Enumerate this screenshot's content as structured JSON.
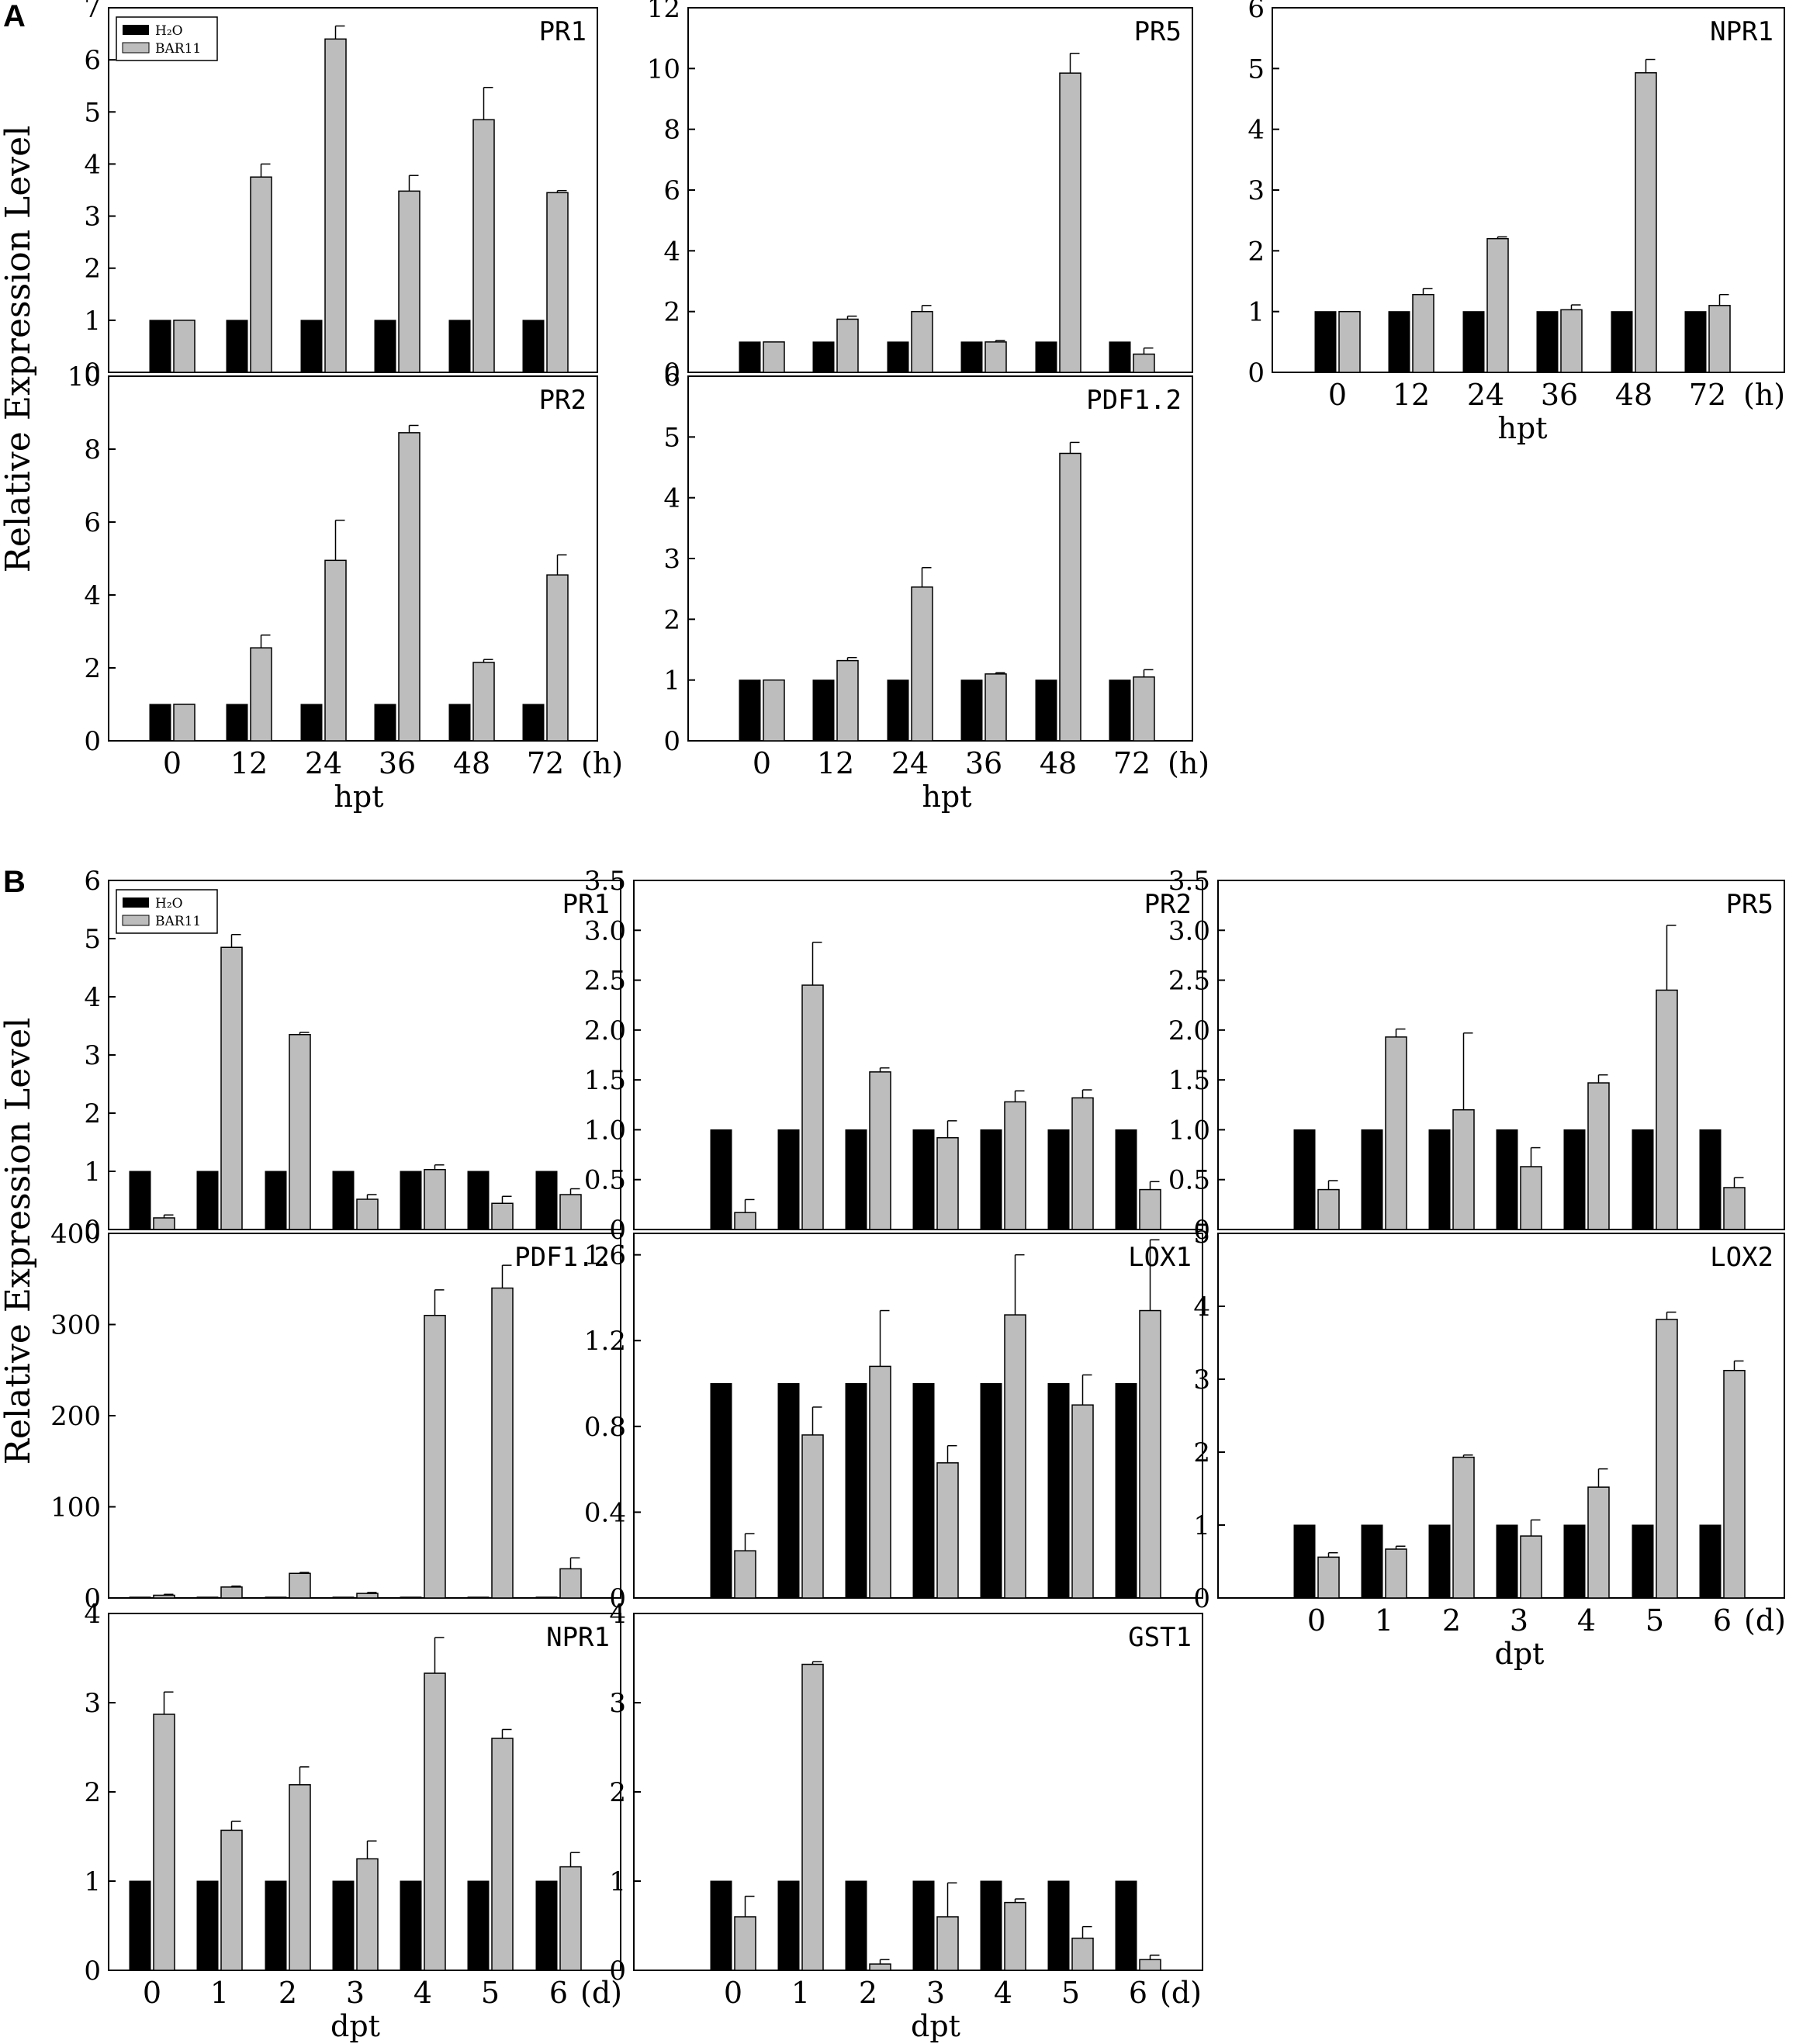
{
  "figure": {
    "ylabel": "Relative Expression Level",
    "panel_A_label": "A",
    "panel_B_label": "B"
  },
  "colors": {
    "H2O": "#000000",
    "BAR11": "#bdbdbd",
    "axis": "#000000"
  },
  "chart_data": [
    {
      "id": "A-PR1",
      "type": "bar",
      "title": "PR1",
      "categories": [
        "0",
        "12",
        "24",
        "36",
        "48",
        "72"
      ],
      "ylim": [
        0,
        7
      ],
      "yticks": [
        "0",
        "1",
        "2",
        "3",
        "4",
        "5",
        "6",
        "7"
      ],
      "legend": {
        "position": "top-left",
        "entries": [
          "H₂O",
          "BAR11"
        ]
      },
      "series": [
        {
          "name": "H₂O",
          "values": [
            1,
            1,
            1,
            1,
            1,
            1
          ],
          "errors": [
            0,
            0,
            0,
            0,
            0,
            0
          ]
        },
        {
          "name": "BAR11",
          "values": [
            1,
            3.75,
            6.4,
            3.48,
            4.85,
            3.45
          ],
          "errors": [
            0,
            0.25,
            0.25,
            0.3,
            0.62,
            0.04
          ]
        }
      ]
    },
    {
      "id": "A-PR5",
      "type": "bar",
      "title": "PR5",
      "categories": [
        "0",
        "12",
        "24",
        "36",
        "48",
        "72"
      ],
      "ylim": [
        0,
        12
      ],
      "yticks": [
        "0",
        "2",
        "4",
        "6",
        "8",
        "10",
        "12"
      ],
      "series": [
        {
          "name": "H₂O",
          "values": [
            1,
            1,
            1,
            1,
            1,
            1
          ],
          "errors": [
            0,
            0,
            0,
            0,
            0,
            0
          ]
        },
        {
          "name": "BAR11",
          "values": [
            1,
            1.75,
            2.0,
            1.0,
            9.85,
            0.6
          ],
          "errors": [
            0,
            0.1,
            0.2,
            0.05,
            0.65,
            0.2
          ]
        }
      ]
    },
    {
      "id": "A-NPR1",
      "type": "bar",
      "title": "NPR1",
      "categories": [
        "0",
        "12",
        "24",
        "36",
        "48",
        "72"
      ],
      "ylim": [
        0,
        6
      ],
      "yticks": [
        "0",
        "1",
        "2",
        "3",
        "4",
        "5",
        "6"
      ],
      "xlabel": "hpt",
      "xunit": "(h)",
      "series": [
        {
          "name": "H₂O",
          "values": [
            1,
            1,
            1,
            1,
            1,
            1
          ],
          "errors": [
            0,
            0,
            0,
            0,
            0,
            0
          ]
        },
        {
          "name": "BAR11",
          "values": [
            1,
            1.28,
            2.2,
            1.03,
            4.93,
            1.1
          ],
          "errors": [
            0,
            0.1,
            0.03,
            0.08,
            0.22,
            0.18
          ]
        }
      ]
    },
    {
      "id": "A-PR2",
      "type": "bar",
      "title": "PR2",
      "categories": [
        "0",
        "12",
        "24",
        "36",
        "48",
        "72"
      ],
      "ylim": [
        0,
        10
      ],
      "yticks": [
        "0",
        "2",
        "4",
        "6",
        "8",
        "10"
      ],
      "xlabel": "hpt",
      "xunit": "(h)",
      "series": [
        {
          "name": "H₂O",
          "values": [
            1,
            1,
            1,
            1,
            1,
            1
          ],
          "errors": [
            0,
            0,
            0,
            0,
            0,
            0
          ]
        },
        {
          "name": "BAR11",
          "values": [
            1,
            2.55,
            4.95,
            8.45,
            2.15,
            4.55
          ],
          "errors": [
            0,
            0.35,
            1.1,
            0.2,
            0.08,
            0.55
          ]
        }
      ]
    },
    {
      "id": "A-PDF12",
      "type": "bar",
      "title": "PDF1.2",
      "categories": [
        "0",
        "12",
        "24",
        "36",
        "48",
        "72"
      ],
      "ylim": [
        0,
        6
      ],
      "yticks": [
        "0",
        "1",
        "2",
        "3",
        "4",
        "5",
        "6"
      ],
      "xlabel": "hpt",
      "xunit": "(h)",
      "series": [
        {
          "name": "H₂O",
          "values": [
            1,
            1,
            1,
            1,
            1,
            1
          ],
          "errors": [
            0,
            0,
            0,
            0,
            0,
            0
          ]
        },
        {
          "name": "BAR11",
          "values": [
            1,
            1.32,
            2.53,
            1.1,
            4.73,
            1.05
          ],
          "errors": [
            0,
            0.05,
            0.32,
            0.02,
            0.18,
            0.12
          ]
        }
      ]
    },
    {
      "id": "B-PR1",
      "type": "bar",
      "title": "PR1",
      "categories": [
        "0",
        "1",
        "2",
        "3",
        "4",
        "5",
        "6"
      ],
      "ylim": [
        0,
        6
      ],
      "yticks": [
        "0",
        "1",
        "2",
        "3",
        "4",
        "5",
        "6"
      ],
      "legend": {
        "position": "top-left",
        "entries": [
          "H₂O",
          "BAR11"
        ]
      },
      "series": [
        {
          "name": "H₂O",
          "values": [
            1,
            1,
            1,
            1,
            1,
            1,
            1
          ],
          "errors": [
            0,
            0,
            0,
            0,
            0,
            0,
            0
          ]
        },
        {
          "name": "BAR11",
          "values": [
            0.2,
            4.85,
            3.35,
            0.52,
            1.03,
            0.45,
            0.6
          ],
          "errors": [
            0.05,
            0.22,
            0.04,
            0.08,
            0.08,
            0.12,
            0.1
          ]
        }
      ]
    },
    {
      "id": "B-PR2",
      "type": "bar",
      "title": "PR2",
      "categories": [
        "0",
        "1",
        "2",
        "3",
        "4",
        "5",
        "6"
      ],
      "ylim": [
        0,
        3.5
      ],
      "yticks": [
        "0",
        "0.5",
        "1.0",
        "1.5",
        "2.0",
        "2.5",
        "3.0",
        "3.5"
      ],
      "series": [
        {
          "name": "H₂O",
          "values": [
            1,
            1,
            1,
            1,
            1,
            1,
            1
          ],
          "errors": [
            0,
            0,
            0,
            0,
            0,
            0,
            0
          ]
        },
        {
          "name": "BAR11",
          "values": [
            0.17,
            2.45,
            1.58,
            0.92,
            1.28,
            1.32,
            0.4
          ],
          "errors": [
            0.13,
            0.43,
            0.04,
            0.17,
            0.11,
            0.08,
            0.08
          ]
        }
      ]
    },
    {
      "id": "B-PR5",
      "type": "bar",
      "title": "PR5",
      "categories": [
        "0",
        "1",
        "2",
        "3",
        "4",
        "5",
        "6"
      ],
      "ylim": [
        0,
        3.5
      ],
      "yticks": [
        "0",
        "0.5",
        "1.0",
        "1.5",
        "2.0",
        "2.5",
        "3.0",
        "3.5"
      ],
      "series": [
        {
          "name": "H₂O",
          "values": [
            1,
            1,
            1,
            1,
            1,
            1,
            1
          ],
          "errors": [
            0,
            0,
            0,
            0,
            0,
            0,
            0
          ]
        },
        {
          "name": "BAR11",
          "values": [
            0.4,
            1.93,
            1.2,
            0.63,
            1.47,
            2.4,
            0.42
          ],
          "errors": [
            0.09,
            0.08,
            0.77,
            0.19,
            0.08,
            0.65,
            0.1
          ]
        }
      ]
    },
    {
      "id": "B-PDF12",
      "type": "bar",
      "title": "PDF1.2",
      "categories": [
        "0",
        "1",
        "2",
        "3",
        "4",
        "5",
        "6"
      ],
      "ylim": [
        0,
        400
      ],
      "yticks": [
        "0",
        "100",
        "200",
        "300",
        "400"
      ],
      "series": [
        {
          "name": "H₂O",
          "values": [
            1,
            1,
            1,
            1,
            1,
            1,
            1
          ],
          "errors": [
            0,
            0,
            0,
            0,
            0,
            0,
            0
          ]
        },
        {
          "name": "BAR11",
          "values": [
            3,
            12,
            27,
            5,
            310,
            340,
            32
          ],
          "errors": [
            1,
            1,
            1,
            1,
            28,
            25,
            12
          ]
        }
      ]
    },
    {
      "id": "B-LOX1",
      "type": "bar",
      "title": "LOX1",
      "categories": [
        "0",
        "1",
        "2",
        "3",
        "4",
        "5",
        "6"
      ],
      "ylim": [
        0,
        1.7
      ],
      "yticks": [
        "0",
        "0.4",
        "0.8",
        "1.2",
        "1.6"
      ],
      "series": [
        {
          "name": "H₂O",
          "values": [
            1,
            1,
            1,
            1,
            1,
            1,
            1
          ],
          "errors": [
            0,
            0,
            0,
            0,
            0,
            0,
            0
          ]
        },
        {
          "name": "BAR11",
          "values": [
            0.22,
            0.76,
            1.08,
            0.63,
            1.32,
            0.9,
            1.34
          ],
          "errors": [
            0.08,
            0.13,
            0.26,
            0.08,
            0.28,
            0.14,
            0.33
          ]
        }
      ]
    },
    {
      "id": "B-LOX2",
      "type": "bar",
      "title": "LOX2",
      "categories": [
        "0",
        "1",
        "2",
        "3",
        "4",
        "5",
        "6"
      ],
      "ylim": [
        0,
        5
      ],
      "yticks": [
        "0",
        "1",
        "2",
        "3",
        "4",
        "5"
      ],
      "xlabel": "dpt",
      "xunit": "(d)",
      "series": [
        {
          "name": "H₂O",
          "values": [
            1,
            1,
            1,
            1,
            1,
            1,
            1
          ],
          "errors": [
            0,
            0,
            0,
            0,
            0,
            0,
            0
          ]
        },
        {
          "name": "BAR11",
          "values": [
            0.56,
            0.67,
            1.93,
            0.85,
            1.52,
            3.82,
            3.12
          ],
          "errors": [
            0.06,
            0.04,
            0.03,
            0.22,
            0.25,
            0.1,
            0.13
          ]
        }
      ]
    },
    {
      "id": "B-NPR1",
      "type": "bar",
      "title": "NPR1",
      "categories": [
        "0",
        "1",
        "2",
        "3",
        "4",
        "5",
        "6"
      ],
      "ylim": [
        0,
        4
      ],
      "yticks": [
        "0",
        "1",
        "2",
        "3",
        "4"
      ],
      "xlabel": "dpt",
      "xunit": "(d)",
      "series": [
        {
          "name": "H₂O",
          "values": [
            1,
            1,
            1,
            1,
            1,
            1,
            1
          ],
          "errors": [
            0,
            0,
            0,
            0,
            0,
            0,
            0
          ]
        },
        {
          "name": "BAR11",
          "values": [
            2.87,
            1.57,
            2.08,
            1.25,
            3.33,
            2.6,
            1.16
          ],
          "errors": [
            0.25,
            0.1,
            0.2,
            0.2,
            0.4,
            0.1,
            0.16
          ]
        }
      ]
    },
    {
      "id": "B-GST1",
      "type": "bar",
      "title": "GST1",
      "categories": [
        "0",
        "1",
        "2",
        "3",
        "4",
        "5",
        "6"
      ],
      "ylim": [
        0,
        4
      ],
      "yticks": [
        "0",
        "1",
        "2",
        "3",
        "4"
      ],
      "xlabel": "dpt",
      "xunit": "(d)",
      "series": [
        {
          "name": "H₂O",
          "values": [
            1,
            1,
            1,
            1,
            1,
            1,
            1
          ],
          "errors": [
            0,
            0,
            0,
            0,
            0,
            0,
            0
          ]
        },
        {
          "name": "BAR11",
          "values": [
            0.6,
            3.43,
            0.07,
            0.6,
            0.76,
            0.36,
            0.12
          ],
          "errors": [
            0.23,
            0.03,
            0.05,
            0.38,
            0.04,
            0.13,
            0.05
          ]
        }
      ]
    }
  ]
}
